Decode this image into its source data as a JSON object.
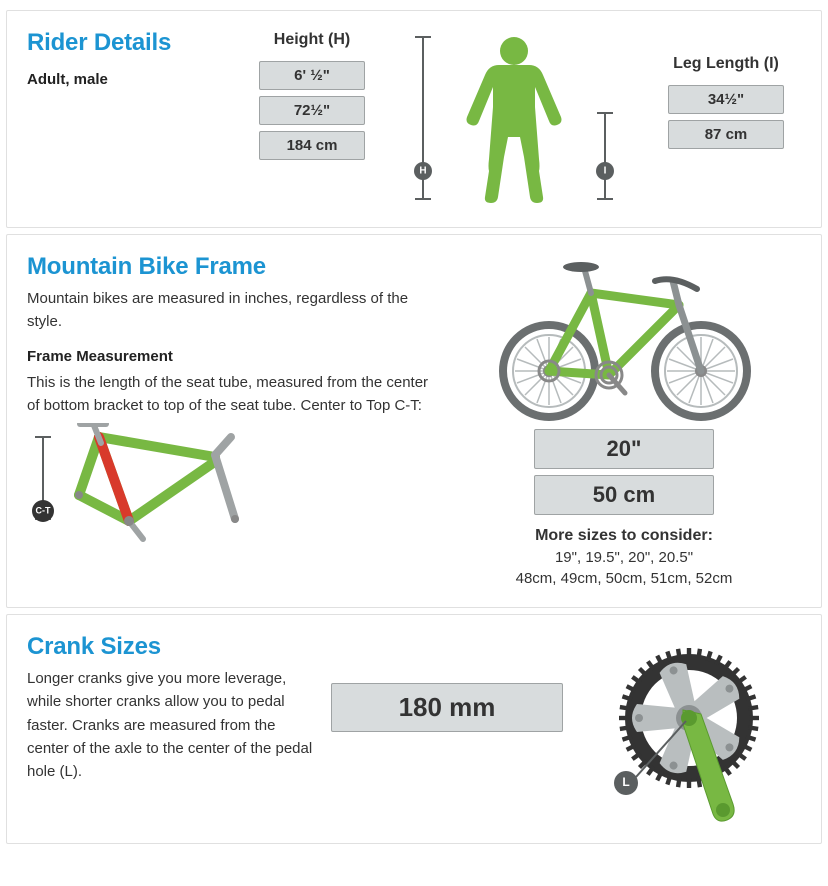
{
  "colors": {
    "accent_blue": "#1c94d2",
    "chip_bg": "#d8dcdd",
    "chip_border": "#9fa3a4",
    "section_border": "#e0e0e0",
    "green": "#78b843",
    "green_dark": "#5a9a2f",
    "spoke_grey": "#b6bbbc",
    "tire_grey": "#6b6f70",
    "crank_grey": "#b9bebf",
    "dim_grey": "#5b5f60",
    "ct_red": "#d83a2b"
  },
  "rider": {
    "title": "Rider Details",
    "subtitle": "Adult, male",
    "height_label": "Height (H)",
    "leg_label": "Leg Length (I)",
    "height_values": [
      "6' ½\"",
      "72½\"",
      "184 cm"
    ],
    "leg_values": [
      "34½\"",
      "87 cm"
    ]
  },
  "frame": {
    "title": "Mountain Bike Frame",
    "intro": "Mountain bikes are measured in inches, regardless of the style.",
    "meas_head": "Frame Measurement",
    "meas_text": "This is the length of the seat tube, measured from the center of bottom bracket to top of the seat tube. Center to Top C-T:",
    "size_values": [
      "20\"",
      "50 cm"
    ],
    "more_head": "More sizes to consider:",
    "more_inch": "19\", 19.5\", 20\", 20.5\"",
    "more_cm": "48cm, 49cm, 50cm, 51cm, 52cm",
    "ct_badge": "C-T"
  },
  "crank": {
    "title": "Crank Sizes",
    "text": "Longer cranks give you more leverage, while shorter cranks allow you to pedal faster. Cranks are measured from the center of the axle to the center of the pedal hole (L).",
    "value": "180 mm",
    "L_badge": "L"
  }
}
